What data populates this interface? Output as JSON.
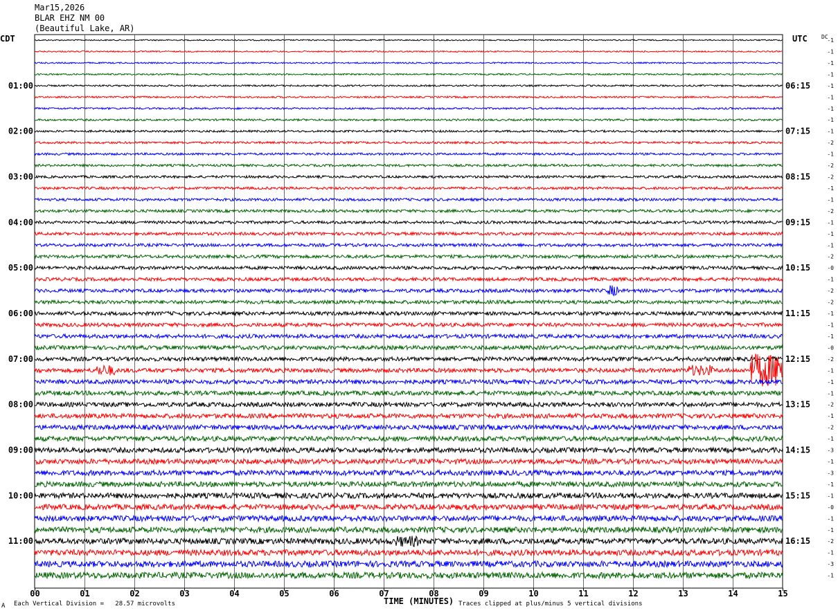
{
  "header": {
    "date": "Mar15,2026",
    "station": "BLAR EHZ NM 00",
    "location": "(Beautiful Lake, AR)"
  },
  "left_timezone": "CDT",
  "right_timezone": "UTC",
  "dc_label": "DC",
  "footer": {
    "mark": "A",
    "scale": "Each Vertical Division =   28.57 microvolts",
    "clip": "Traces clipped at plus/minus 5 vertical divisions"
  },
  "colors": [
    "#000000",
    "#ff0000",
    "#0000ff",
    "#006400"
  ],
  "chart_data": {
    "type": "line",
    "xlabel": "TIME (MINUTES)",
    "x_ticks": [
      "00",
      "01",
      "02",
      "03",
      "04",
      "05",
      "06",
      "07",
      "08",
      "09",
      "10",
      "11",
      "12",
      "13",
      "14",
      "15"
    ],
    "xlim": [
      0,
      15
    ],
    "grid": true,
    "trace_count": 48,
    "left_hour_labels": [
      "01:00",
      "02:00",
      "03:00",
      "04:00",
      "05:00",
      "06:00",
      "07:00",
      "08:00",
      "09:00",
      "10:00",
      "11:00"
    ],
    "right_hour_labels": [
      "06:15",
      "07:15",
      "08:15",
      "09:15",
      "10:15",
      "11:15",
      "12:15",
      "13:15",
      "14:15",
      "15:15",
      "16:15"
    ],
    "dc_offsets": [
      "-1",
      "-1",
      "-1",
      "-1",
      "-1",
      "-1",
      "-1",
      "-1",
      "-1",
      "-2",
      "-1",
      "-2",
      "-2",
      "-1",
      "-1",
      "-2",
      "-1",
      "-1",
      "-1",
      "-2",
      "-0",
      "-1",
      "-2",
      "-2",
      "-1",
      "-1",
      "-1",
      "-0",
      "-2",
      "-1",
      "-1",
      "-1",
      "-2",
      "-1",
      "-2",
      "-1",
      "-3",
      "-1",
      "-3",
      "-1",
      "-1",
      "-0",
      "-1",
      "-1",
      "-2",
      "-1",
      "-3",
      "-1"
    ],
    "events": [
      {
        "trace": 29,
        "start_min": 1.25,
        "end_min": 1.6,
        "amplitude": "small"
      },
      {
        "trace": 29,
        "start_min": 13.1,
        "end_min": 13.6,
        "amplitude": "small"
      },
      {
        "trace": 29,
        "start_min": 14.35,
        "end_min": 15,
        "amplitude": "large"
      },
      {
        "trace": 22,
        "start_min": 11.5,
        "end_min": 11.7,
        "amplitude": "small"
      },
      {
        "trace": 44,
        "start_min": 7.2,
        "end_min": 7.7,
        "amplitude": "small"
      }
    ]
  }
}
